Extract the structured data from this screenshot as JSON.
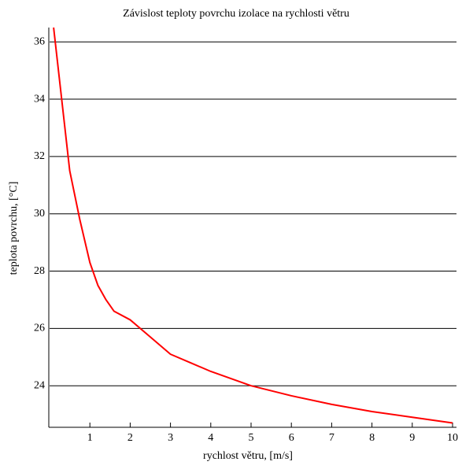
{
  "chart_data": {
    "type": "line",
    "title": "Závislost teploty povrchu izolace na rychlosti větru",
    "x_label": "rychlost větru, [m/s]",
    "y_label": "teplota povrchu, [°C]",
    "x": [
      0.1,
      0.3,
      0.5,
      0.75,
      1.0,
      1.2,
      1.4,
      1.6,
      2.0,
      2.5,
      3.0,
      3.5,
      4.0,
      5.0,
      6.0,
      7.0,
      8.0,
      9.0,
      10.0
    ],
    "series": [
      {
        "name": "teplota povrchu",
        "color": "#ff0000",
        "values": [
          36.5,
          34.0,
          31.5,
          29.8,
          28.3,
          27.5,
          27.0,
          26.6,
          26.3,
          25.7,
          25.1,
          24.8,
          24.5,
          24.0,
          23.65,
          23.35,
          23.1,
          22.9,
          22.7
        ]
      }
    ],
    "xlim": [
      0,
      10
    ],
    "xticks": [
      1,
      2,
      3,
      4,
      5,
      6,
      7,
      8,
      9,
      10
    ],
    "ylim": [
      22.55,
      36.5
    ],
    "yticks": [
      24,
      26,
      28,
      30,
      32,
      34,
      36
    ],
    "grid": true
  }
}
